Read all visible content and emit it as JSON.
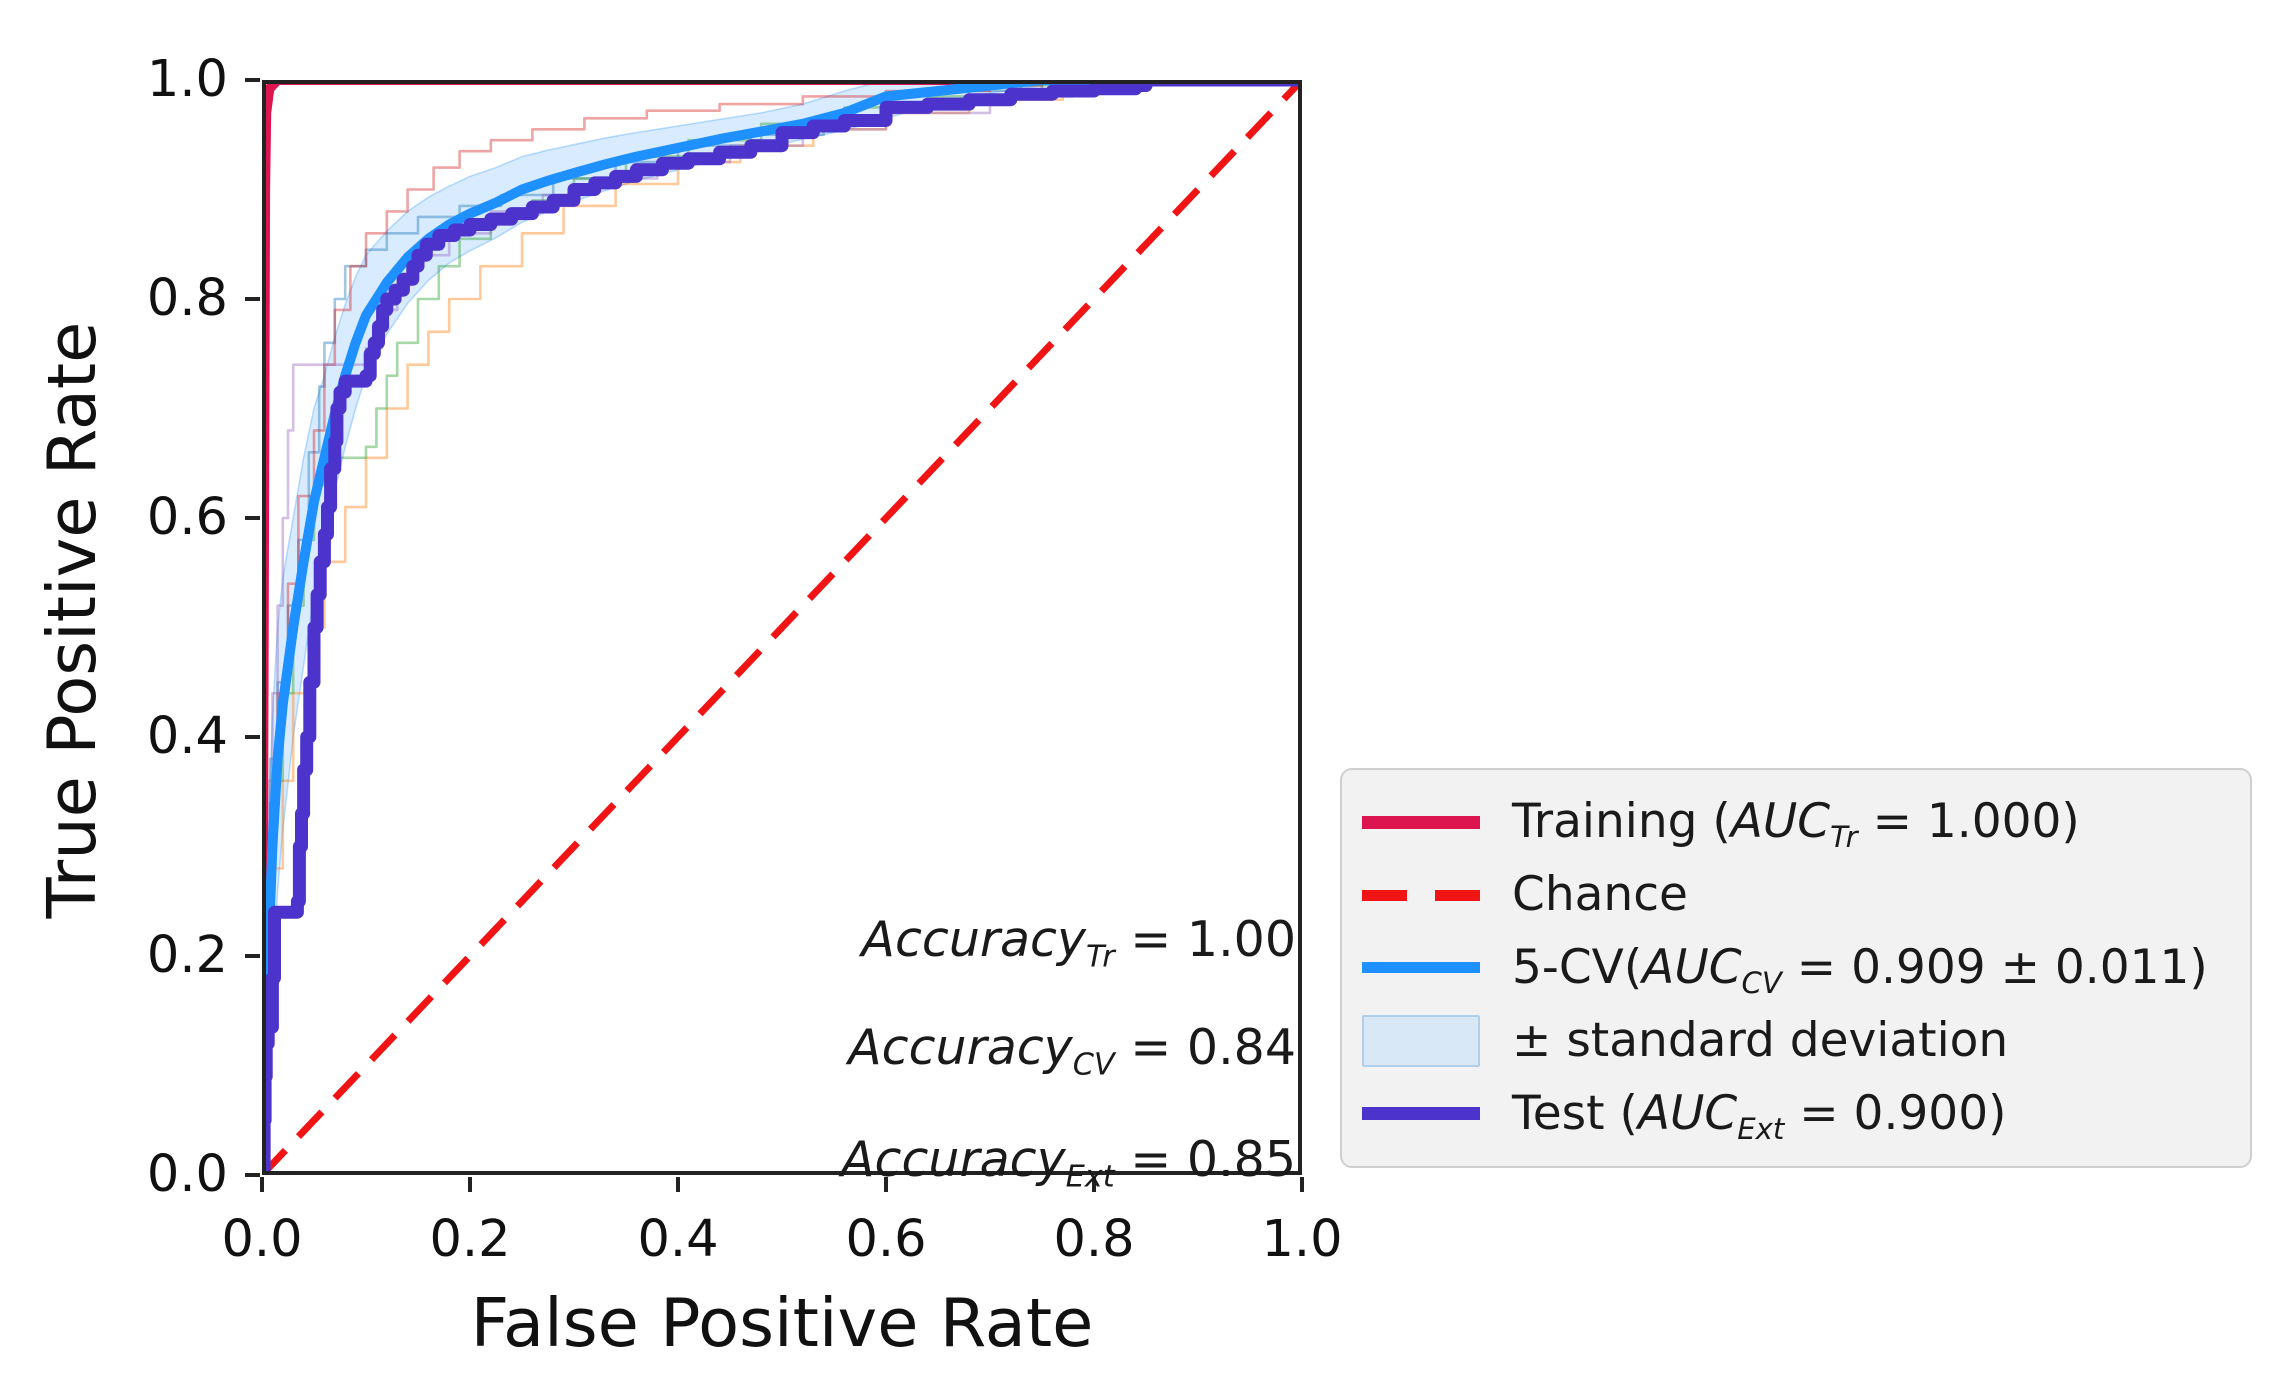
{
  "figure": {
    "xlabel": "False Positive Rate",
    "ylabel": "True Positive Rate",
    "x_ticks": [
      "0.0",
      "0.2",
      "0.4",
      "0.6",
      "0.8",
      "1.0"
    ],
    "y_ticks": [
      "1.0",
      "0.8",
      "0.6",
      "0.4",
      "0.2",
      "0.0"
    ]
  },
  "annotations": [
    {
      "word": "Accuracy",
      "sub": "Tr",
      "eq": " = 1.00"
    },
    {
      "word": "Accuracy",
      "sub": "CV",
      "eq": " = 0.84"
    },
    {
      "word": "Accuracy",
      "sub": "Ext",
      "eq": " = 0.85"
    }
  ],
  "legend": {
    "items": [
      {
        "pre": "Training (",
        "math": "AUC",
        "sub": "Tr",
        "post": " = 1.000)"
      },
      {
        "pre": "Chance",
        "math": "",
        "sub": "",
        "post": ""
      },
      {
        "pre": "5-CV(",
        "math": "AUC",
        "sub": "CV",
        "post": " = 0.909 ± 0.011)"
      },
      {
        "pre": "± standard deviation",
        "math": "",
        "sub": "",
        "post": ""
      },
      {
        "pre": "Test (",
        "math": "AUC",
        "sub": "Ext",
        "post": " = 0.900)"
      }
    ]
  },
  "colors": {
    "training": "#DC1450",
    "chance": "#F01414",
    "cv_mean": "#1E90FF",
    "band_fill": "rgba(30,144,255,0.17)",
    "band_edge": "rgba(30,144,255,0.30)",
    "band_swatch": "#D9E8F6",
    "test": "#4C33CC",
    "spine": "#222222",
    "folds": [
      "#1f77b4",
      "#ff7f0e",
      "#2ca02c",
      "#d62728",
      "#9467bd"
    ]
  },
  "chart_data": {
    "type": "line",
    "title": "",
    "xlabel": "False Positive Rate",
    "ylabel": "True Positive Rate",
    "xlim": [
      0,
      1
    ],
    "ylim": [
      0,
      1
    ],
    "grid": false,
    "legend_position": "lower-right",
    "x_tick_values": [
      0,
      0.2,
      0.4,
      0.6,
      0.8,
      1.0
    ],
    "y_tick_values": [
      1.0,
      0.8,
      0.6,
      0.4,
      0.2,
      0.0
    ],
    "series": [
      {
        "name": "Training (AUC_Tr = 1.000)",
        "auc": 1.0,
        "color_key": "training",
        "render": "line",
        "width": 10,
        "dash": null,
        "opacity": 1,
        "points": [
          [
            0,
            0
          ],
          [
            0.003,
            0.9
          ],
          [
            0.004,
            0.97
          ],
          [
            0.007,
            0.992
          ],
          [
            0.015,
            1.0
          ],
          [
            1,
            1
          ]
        ]
      },
      {
        "name": "Chance",
        "color_key": "chance",
        "render": "line",
        "width": 7,
        "dash": "34 19",
        "opacity": 1,
        "points": [
          [
            0,
            0
          ],
          [
            1,
            1
          ]
        ]
      },
      {
        "name": "CV fold 1",
        "color_key": "folds.0",
        "render": "step",
        "width": 2.6,
        "dash": null,
        "opacity": 0.42,
        "points": [
          [
            0,
            0
          ],
          [
            0.004,
            0.3
          ],
          [
            0.008,
            0.38
          ],
          [
            0.015,
            0.45
          ],
          [
            0.025,
            0.52
          ],
          [
            0.035,
            0.58
          ],
          [
            0.045,
            0.66
          ],
          [
            0.055,
            0.72
          ],
          [
            0.06,
            0.76
          ],
          [
            0.07,
            0.8
          ],
          [
            0.08,
            0.83
          ],
          [
            0.1,
            0.845
          ],
          [
            0.12,
            0.86
          ],
          [
            0.15,
            0.875
          ],
          [
            0.19,
            0.885
          ],
          [
            0.23,
            0.895
          ],
          [
            0.28,
            0.91
          ],
          [
            0.34,
            0.925
          ],
          [
            0.4,
            0.94
          ],
          [
            0.47,
            0.95
          ],
          [
            0.54,
            0.965
          ],
          [
            0.6,
            0.98
          ],
          [
            0.68,
            0.99
          ],
          [
            0.75,
            1.0
          ],
          [
            1,
            1
          ]
        ]
      },
      {
        "name": "CV fold 2",
        "color_key": "folds.1",
        "render": "step",
        "width": 2.6,
        "dash": null,
        "opacity": 0.42,
        "points": [
          [
            0,
            0
          ],
          [
            0.005,
            0.2
          ],
          [
            0.01,
            0.28
          ],
          [
            0.02,
            0.36
          ],
          [
            0.03,
            0.44
          ],
          [
            0.045,
            0.5
          ],
          [
            0.06,
            0.56
          ],
          [
            0.08,
            0.61
          ],
          [
            0.1,
            0.655
          ],
          [
            0.12,
            0.7
          ],
          [
            0.14,
            0.74
          ],
          [
            0.16,
            0.77
          ],
          [
            0.18,
            0.8
          ],
          [
            0.21,
            0.83
          ],
          [
            0.25,
            0.86
          ],
          [
            0.29,
            0.885
          ],
          [
            0.34,
            0.905
          ],
          [
            0.4,
            0.925
          ],
          [
            0.46,
            0.94
          ],
          [
            0.53,
            0.955
          ],
          [
            0.6,
            0.97
          ],
          [
            0.68,
            0.982
          ],
          [
            0.77,
            0.992
          ],
          [
            0.85,
            1.0
          ],
          [
            1,
            1
          ]
        ]
      },
      {
        "name": "CV fold 3",
        "color_key": "folds.2",
        "render": "step",
        "width": 2.6,
        "dash": null,
        "opacity": 0.42,
        "points": [
          [
            0,
            0
          ],
          [
            0.005,
            0.28
          ],
          [
            0.012,
            0.36
          ],
          [
            0.02,
            0.44
          ],
          [
            0.03,
            0.52
          ],
          [
            0.04,
            0.58
          ],
          [
            0.05,
            0.63
          ],
          [
            0.06,
            0.655
          ],
          [
            0.1,
            0.665
          ],
          [
            0.11,
            0.7
          ],
          [
            0.12,
            0.73
          ],
          [
            0.13,
            0.76
          ],
          [
            0.15,
            0.8
          ],
          [
            0.17,
            0.83
          ],
          [
            0.19,
            0.855
          ],
          [
            0.22,
            0.875
          ],
          [
            0.26,
            0.89
          ],
          [
            0.3,
            0.91
          ],
          [
            0.35,
            0.93
          ],
          [
            0.41,
            0.945
          ],
          [
            0.48,
            0.96
          ],
          [
            0.56,
            0.975
          ],
          [
            0.64,
            0.985
          ],
          [
            0.73,
            0.995
          ],
          [
            0.78,
            1.0
          ],
          [
            1,
            1
          ]
        ]
      },
      {
        "name": "CV fold 4",
        "color_key": "folds.3",
        "render": "step",
        "width": 2.6,
        "dash": null,
        "opacity": 0.42,
        "points": [
          [
            0,
            0
          ],
          [
            0.003,
            0.24
          ],
          [
            0.008,
            0.34
          ],
          [
            0.015,
            0.44
          ],
          [
            0.025,
            0.54
          ],
          [
            0.035,
            0.62
          ],
          [
            0.05,
            0.68
          ],
          [
            0.06,
            0.74
          ],
          [
            0.07,
            0.79
          ],
          [
            0.085,
            0.83
          ],
          [
            0.1,
            0.86
          ],
          [
            0.12,
            0.88
          ],
          [
            0.14,
            0.9
          ],
          [
            0.165,
            0.92
          ],
          [
            0.19,
            0.935
          ],
          [
            0.22,
            0.945
          ],
          [
            0.26,
            0.955
          ],
          [
            0.31,
            0.965
          ],
          [
            0.37,
            0.972
          ],
          [
            0.44,
            0.978
          ],
          [
            0.52,
            0.985
          ],
          [
            0.6,
            0.99
          ],
          [
            0.7,
            0.995
          ],
          [
            0.75,
            1.0
          ],
          [
            1,
            1
          ]
        ]
      },
      {
        "name": "CV fold 5",
        "color_key": "folds.4",
        "render": "step",
        "width": 2.6,
        "dash": null,
        "opacity": 0.42,
        "points": [
          [
            0,
            0
          ],
          [
            0.003,
            0.26
          ],
          [
            0.006,
            0.36
          ],
          [
            0.01,
            0.44
          ],
          [
            0.015,
            0.52
          ],
          [
            0.02,
            0.6
          ],
          [
            0.025,
            0.68
          ],
          [
            0.03,
            0.74
          ],
          [
            0.1,
            0.755
          ],
          [
            0.115,
            0.79
          ],
          [
            0.13,
            0.82
          ],
          [
            0.15,
            0.84
          ],
          [
            0.18,
            0.86
          ],
          [
            0.22,
            0.88
          ],
          [
            0.27,
            0.895
          ],
          [
            0.32,
            0.91
          ],
          [
            0.38,
            0.925
          ],
          [
            0.45,
            0.94
          ],
          [
            0.52,
            0.955
          ],
          [
            0.6,
            0.97
          ],
          [
            0.7,
            0.985
          ],
          [
            0.78,
            0.995
          ],
          [
            0.82,
            1.0
          ],
          [
            1,
            1
          ]
        ]
      },
      {
        "name": "5-CV(AUC_CV = 0.909 ± 0.011)",
        "auc": 0.909,
        "auc_std": 0.011,
        "color_key": "cv_mean",
        "render": "line",
        "width": 10,
        "dash": null,
        "opacity": 1,
        "points": [
          [
            0,
            0
          ],
          [
            0.005,
            0.18
          ],
          [
            0.01,
            0.3
          ],
          [
            0.015,
            0.38
          ],
          [
            0.02,
            0.43
          ],
          [
            0.03,
            0.5
          ],
          [
            0.04,
            0.56
          ],
          [
            0.05,
            0.615
          ],
          [
            0.06,
            0.655
          ],
          [
            0.07,
            0.695
          ],
          [
            0.08,
            0.73
          ],
          [
            0.09,
            0.76
          ],
          [
            0.1,
            0.785
          ],
          [
            0.12,
            0.815
          ],
          [
            0.14,
            0.838
          ],
          [
            0.16,
            0.855
          ],
          [
            0.18,
            0.868
          ],
          [
            0.2,
            0.878
          ],
          [
            0.225,
            0.888
          ],
          [
            0.25,
            0.9
          ],
          [
            0.275,
            0.908
          ],
          [
            0.3,
            0.915
          ],
          [
            0.33,
            0.923
          ],
          [
            0.36,
            0.93
          ],
          [
            0.4,
            0.938
          ],
          [
            0.44,
            0.946
          ],
          [
            0.48,
            0.953
          ],
          [
            0.52,
            0.96
          ],
          [
            0.56,
            0.97
          ],
          [
            0.6,
            0.985
          ],
          [
            0.65,
            0.99
          ],
          [
            0.7,
            0.995
          ],
          [
            0.75,
            1.0
          ],
          [
            1,
            1
          ]
        ]
      },
      {
        "name": "Test (AUC_Ext = 0.900)",
        "auc": 0.9,
        "color_key": "test",
        "render": "step",
        "width": 13,
        "dash": null,
        "opacity": 1,
        "points": [
          [
            0,
            0
          ],
          [
            0.002,
            0.05
          ],
          [
            0.003,
            0.09
          ],
          [
            0.004,
            0.12
          ],
          [
            0.006,
            0.135
          ],
          [
            0.01,
            0.18
          ],
          [
            0.012,
            0.24
          ],
          [
            0.034,
            0.25
          ],
          [
            0.036,
            0.3
          ],
          [
            0.038,
            0.33
          ],
          [
            0.04,
            0.37
          ],
          [
            0.043,
            0.4
          ],
          [
            0.046,
            0.45
          ],
          [
            0.05,
            0.5
          ],
          [
            0.053,
            0.53
          ],
          [
            0.056,
            0.56
          ],
          [
            0.06,
            0.585
          ],
          [
            0.063,
            0.61
          ],
          [
            0.066,
            0.645
          ],
          [
            0.07,
            0.67
          ],
          [
            0.072,
            0.7
          ],
          [
            0.075,
            0.715
          ],
          [
            0.08,
            0.725
          ],
          [
            0.1,
            0.73
          ],
          [
            0.104,
            0.75
          ],
          [
            0.108,
            0.76
          ],
          [
            0.112,
            0.775
          ],
          [
            0.116,
            0.79
          ],
          [
            0.12,
            0.8
          ],
          [
            0.128,
            0.808
          ],
          [
            0.136,
            0.818
          ],
          [
            0.145,
            0.83
          ],
          [
            0.15,
            0.84
          ],
          [
            0.158,
            0.85
          ],
          [
            0.17,
            0.858
          ],
          [
            0.185,
            0.863
          ],
          [
            0.2,
            0.868
          ],
          [
            0.22,
            0.873
          ],
          [
            0.24,
            0.878
          ],
          [
            0.26,
            0.884
          ],
          [
            0.28,
            0.89
          ],
          [
            0.3,
            0.9
          ],
          [
            0.32,
            0.906
          ],
          [
            0.34,
            0.912
          ],
          [
            0.36,
            0.918
          ],
          [
            0.385,
            0.924
          ],
          [
            0.41,
            0.928
          ],
          [
            0.44,
            0.934
          ],
          [
            0.47,
            0.94
          ],
          [
            0.5,
            0.952
          ],
          [
            0.53,
            0.958
          ],
          [
            0.56,
            0.963
          ],
          [
            0.6,
            0.975
          ],
          [
            0.64,
            0.978
          ],
          [
            0.68,
            0.982
          ],
          [
            0.72,
            0.987
          ],
          [
            0.76,
            0.99
          ],
          [
            0.8,
            0.992
          ],
          [
            0.84,
            0.995
          ],
          [
            0.85,
            1.0
          ],
          [
            1,
            1
          ]
        ]
      }
    ],
    "band": {
      "name": "± standard deviation",
      "x": [
        0,
        0.005,
        0.01,
        0.015,
        0.02,
        0.03,
        0.04,
        0.05,
        0.06,
        0.07,
        0.08,
        0.09,
        0.1,
        0.12,
        0.14,
        0.16,
        0.18,
        0.2,
        0.225,
        0.25,
        0.275,
        0.3,
        0.33,
        0.36,
        0.4,
        0.44,
        0.48,
        0.52,
        0.56,
        0.6,
        0.65,
        0.7,
        0.75,
        1.0
      ],
      "upper": [
        0,
        0.28,
        0.42,
        0.5,
        0.545,
        0.6,
        0.655,
        0.7,
        0.73,
        0.765,
        0.795,
        0.82,
        0.84,
        0.862,
        0.88,
        0.893,
        0.903,
        0.912,
        0.92,
        0.93,
        0.936,
        0.941,
        0.947,
        0.952,
        0.958,
        0.964,
        0.97,
        0.978,
        0.99,
        1.0,
        1.0,
        1.0,
        1.0,
        1.0
      ],
      "lower": [
        0,
        0.08,
        0.18,
        0.26,
        0.315,
        0.4,
        0.465,
        0.53,
        0.58,
        0.625,
        0.665,
        0.7,
        0.73,
        0.768,
        0.796,
        0.817,
        0.833,
        0.844,
        0.856,
        0.87,
        0.88,
        0.889,
        0.899,
        0.908,
        0.918,
        0.928,
        0.937,
        0.946,
        0.954,
        0.965,
        0.978,
        0.988,
        0.995,
        1.0
      ]
    }
  }
}
